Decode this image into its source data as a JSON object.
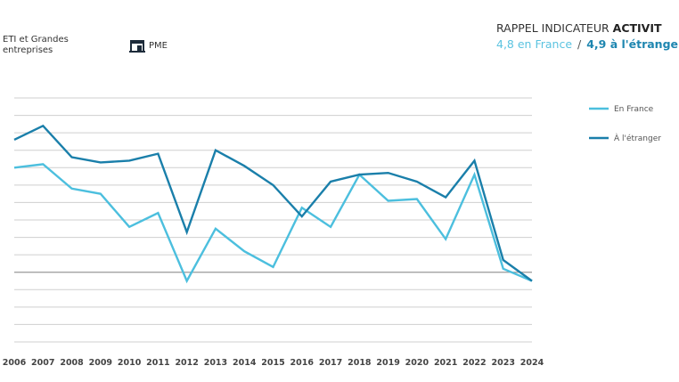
{
  "header": {
    "category_1": "ETI et Grandes entreprises",
    "category_2": "PME",
    "category_2_icon": "storefront-icon",
    "title_regular": "RAPPEL INDICATEUR ",
    "title_bold": "ACTIVIT",
    "subtitle_france": "4,8 en France",
    "subtitle_separator": "/",
    "subtitle_etranger": "4,9 à l'étrange"
  },
  "chart_data": {
    "type": "line",
    "title": "",
    "xlabel": "",
    "ylabel": "",
    "x": [
      "2006",
      "2007",
      "2008",
      "2009",
      "2010",
      "2011",
      "2012",
      "2013",
      "2014",
      "2015",
      "2016",
      "2017",
      "2018",
      "2019",
      "2020",
      "2021",
      "2022",
      "2023",
      "2024"
    ],
    "ylim": [
      0,
      14
    ],
    "grid": true,
    "legend_position": "right",
    "series": [
      {
        "name": "En France",
        "color": "#4cbfde",
        "values": [
          10.0,
          10.2,
          8.8,
          8.5,
          6.6,
          7.4,
          3.5,
          6.5,
          5.2,
          4.3,
          7.7,
          6.6,
          9.6,
          8.1,
          8.2,
          5.9,
          9.6,
          4.2,
          3.5
        ]
      },
      {
        "name": "À l'étranger",
        "color": "#1a7faa",
        "values": [
          11.6,
          12.4,
          10.6,
          10.3,
          10.4,
          10.8,
          6.3,
          11.0,
          10.1,
          9.0,
          7.2,
          9.2,
          9.6,
          9.7,
          9.2,
          8.3,
          10.4,
          4.7,
          3.5
        ]
      }
    ]
  }
}
